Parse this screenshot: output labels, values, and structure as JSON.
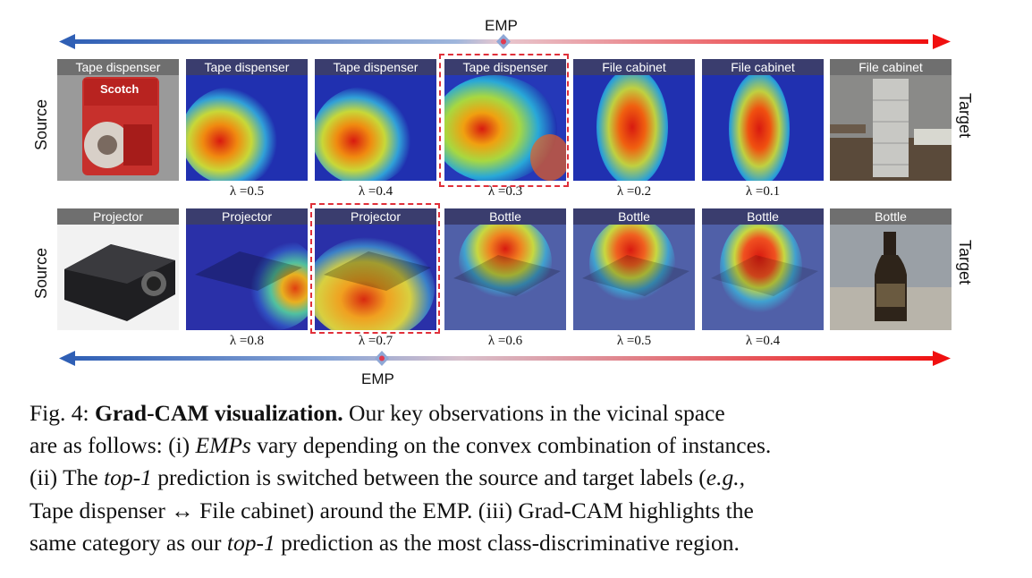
{
  "emp_label": "EMP",
  "source_label": "Source",
  "target_label": "Target",
  "rows": [
    {
      "tiles": [
        {
          "label": "Tape dispenser",
          "lambda": "",
          "kind": "source"
        },
        {
          "label": "Tape dispenser",
          "lambda": "λ =0.5",
          "kind": "cam"
        },
        {
          "label": "Tape dispenser",
          "lambda": "λ =0.4",
          "kind": "cam"
        },
        {
          "label": "Tape dispenser",
          "lambda": "λ =0.3",
          "kind": "cam",
          "highlighted": true
        },
        {
          "label": "File cabinet",
          "lambda": "λ =0.2",
          "kind": "cam"
        },
        {
          "label": "File cabinet",
          "lambda": "λ =0.1",
          "kind": "cam"
        },
        {
          "label": "File cabinet",
          "lambda": "",
          "kind": "target"
        }
      ]
    },
    {
      "tiles": [
        {
          "label": "Projector",
          "lambda": "",
          "kind": "source"
        },
        {
          "label": "Projector",
          "lambda": "λ =0.8",
          "kind": "cam"
        },
        {
          "label": "Projector",
          "lambda": "λ =0.7",
          "kind": "cam",
          "highlighted": true
        },
        {
          "label": "Bottle",
          "lambda": "λ =0.6",
          "kind": "cam"
        },
        {
          "label": "Bottle",
          "lambda": "λ =0.5",
          "kind": "cam"
        },
        {
          "label": "Bottle",
          "lambda": "λ =0.4",
          "kind": "cam"
        },
        {
          "label": "Bottle",
          "lambda": "",
          "kind": "target"
        }
      ]
    }
  ],
  "caption": {
    "fig_num": "Fig. 4: ",
    "title": "Grad-CAM visualization.",
    "l1_a": " Our key observations in the vicinal space",
    "l2_a": "are as follows: (i) ",
    "l2_i": "EMPs",
    "l2_b": " vary depending on the convex combination of instances.",
    "l3_a": "(ii) The ",
    "l3_i1": "top-1",
    "l3_b": " prediction is switched between the source and target labels (",
    "l3_i2": "e.g.,",
    "l4_a": "Tape dispenser ↔ File cabinet) around the EMP. (iii) Grad-CAM highlights the",
    "l5_a": "same category as our ",
    "l5_i": "top-1",
    "l5_b": " prediction as the most class-discriminative region."
  },
  "colors": {
    "arrow_start": "#2f5fb5",
    "arrow_end": "#f01010",
    "highlight": "#e0303a",
    "source_header": "#6f6f6f",
    "cam_header": "#3a3d6e"
  }
}
